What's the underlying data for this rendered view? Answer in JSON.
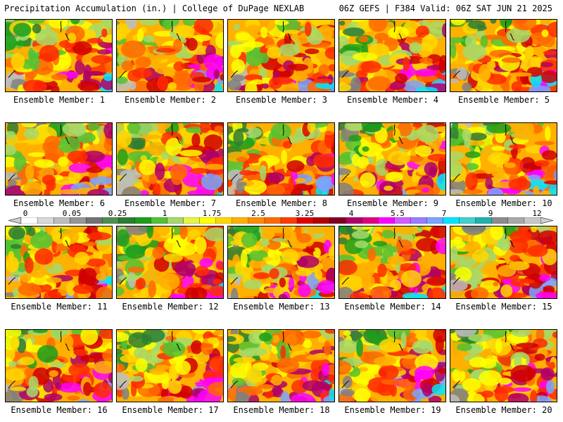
{
  "header": {
    "title_left": "Precipitation Accumulation (in.) | College of DuPage NEXLAB",
    "title_right": "06Z GEFS | F384 Valid: 06Z SAT JUN 21 2025"
  },
  "panels": [
    {
      "label": "Ensemble Member: 1"
    },
    {
      "label": "Ensemble Member: 2"
    },
    {
      "label": "Ensemble Member: 3"
    },
    {
      "label": "Ensemble Member: 4"
    },
    {
      "label": "Ensemble Member: 5"
    },
    {
      "label": "Ensemble Member: 6"
    },
    {
      "label": "Ensemble Member: 7"
    },
    {
      "label": "Ensemble Member: 8"
    },
    {
      "label": "Ensemble Member: 9"
    },
    {
      "label": "Ensemble Member: 10"
    },
    {
      "label": "Ensemble Member: 11"
    },
    {
      "label": "Ensemble Member: 12"
    },
    {
      "label": "Ensemble Member: 13"
    },
    {
      "label": "Ensemble Member: 14"
    },
    {
      "label": "Ensemble Member: 15"
    },
    {
      "label": "Ensemble Member: 16"
    },
    {
      "label": "Ensemble Member: 17"
    },
    {
      "label": "Ensemble Member: 18"
    },
    {
      "label": "Ensemble Member: 19"
    },
    {
      "label": "Ensemble Member: 20"
    }
  ],
  "colorbar": {
    "tick_labels": [
      "0",
      "0.05",
      "0.25",
      "1",
      "1.75",
      "2.5",
      "3.25",
      "4",
      "5.5",
      "7",
      "9",
      "12"
    ],
    "colors": [
      "#ffffff",
      "#d9d9d9",
      "#bdbdbd",
      "#969696",
      "#737373",
      "#4f8f4f",
      "#2e7d32",
      "#1b9e1b",
      "#52c234",
      "#a6d96a",
      "#e6f542",
      "#ffff00",
      "#ffd700",
      "#ffb000",
      "#ff8c00",
      "#ff6a00",
      "#ff3b00",
      "#e00000",
      "#b30000",
      "#800020",
      "#b0006a",
      "#e0007a",
      "#ff00ff",
      "#d45cff",
      "#9b7cff",
      "#7aa5ff",
      "#00e5ff",
      "#40d0d0",
      "#20b2aa",
      "#8c8c8c",
      "#a9a9a9",
      "#c8c8c8"
    ],
    "end_color": "#d0d0d0"
  }
}
